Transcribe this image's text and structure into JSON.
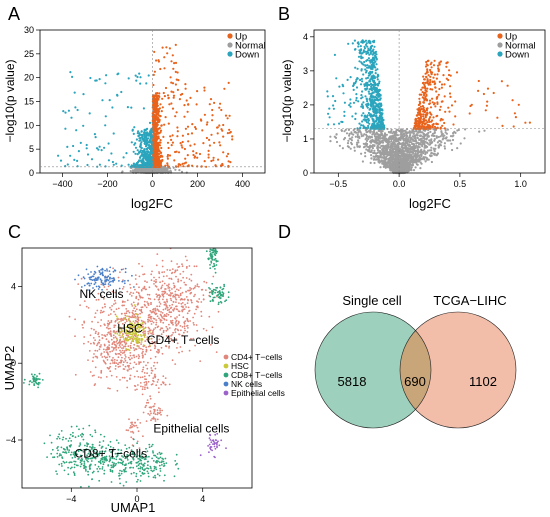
{
  "panels": {
    "A": {
      "letter": "A"
    },
    "B": {
      "letter": "B"
    },
    "C": {
      "letter": "C"
    },
    "D": {
      "letter": "D"
    }
  },
  "colors": {
    "up": "#e8631c",
    "normal": "#9e9e9e",
    "down": "#2aa5bd",
    "cd4": "#e0867a",
    "hsc": "#c9c93a",
    "cd8": "#2ea57a",
    "nk": "#4a7fc9",
    "epi": "#9b62c9",
    "venn_left": "#8cc9b2",
    "venn_right": "#f0b29a",
    "venn_overlap": "#c9a57a"
  },
  "chart_data": [
    {
      "type": "scatter",
      "panel": "A",
      "xlabel": "log2FC",
      "ylabel": "−log10(p value)",
      "xlim": [
        -500,
        500
      ],
      "ylim": [
        0,
        30
      ],
      "xticks": [
        "−400",
        "−200",
        "0",
        "200",
        "400"
      ],
      "yticks": [
        "0",
        "5",
        "10",
        "15",
        "20",
        "25",
        "30"
      ],
      "legend_position": "top-right",
      "series": [
        {
          "name": "Up",
          "color": "#e8631c"
        },
        {
          "name": "Normal",
          "color": "#9e9e9e"
        },
        {
          "name": "Down",
          "color": "#2aa5bd"
        }
      ]
    },
    {
      "type": "scatter",
      "panel": "B",
      "xlabel": "log2FC",
      "ylabel": "−log10(p value)",
      "xlim": [
        -0.7,
        1.2
      ],
      "ylim": [
        0,
        4.2
      ],
      "xticks": [
        "−0.5",
        "0.0",
        "0.5",
        "1.0"
      ],
      "yticks": [
        "0",
        "1",
        "2",
        "3",
        "4"
      ],
      "threshold_y": 1.3,
      "legend_position": "top-right",
      "series": [
        {
          "name": "Up",
          "color": "#e8631c"
        },
        {
          "name": "Normal",
          "color": "#9e9e9e"
        },
        {
          "name": "Down",
          "color": "#2aa5bd"
        }
      ]
    },
    {
      "type": "scatter",
      "panel": "C",
      "xlabel": "UMAP1",
      "ylabel": "UMAP2",
      "xlim": [
        -7,
        7
      ],
      "ylim": [
        -6.5,
        6
      ],
      "xticks": [
        "−4",
        "0",
        "4"
      ],
      "yticks": [
        "−4",
        "0",
        "4"
      ],
      "legend_position": "right",
      "series": [
        {
          "name": "CD4+ T−cells",
          "color": "#e0867a"
        },
        {
          "name": "HSC",
          "color": "#c9c93a"
        },
        {
          "name": "CD8+ T−cells",
          "color": "#2ea57a"
        },
        {
          "name": "NK cells",
          "color": "#4a7fc9"
        },
        {
          "name": "Epithelial cells",
          "color": "#9b62c9"
        }
      ],
      "cluster_labels": [
        "NK cells",
        "HSC",
        "CD4+ T−cells",
        "Epithelial cells",
        "CD8+ T−cells"
      ]
    },
    {
      "type": "venn",
      "panel": "D",
      "sets": [
        "Single cell",
        "TCGA−LIHC"
      ],
      "values": {
        "left_only": "5818",
        "both": "690",
        "right_only": "1102"
      }
    }
  ]
}
